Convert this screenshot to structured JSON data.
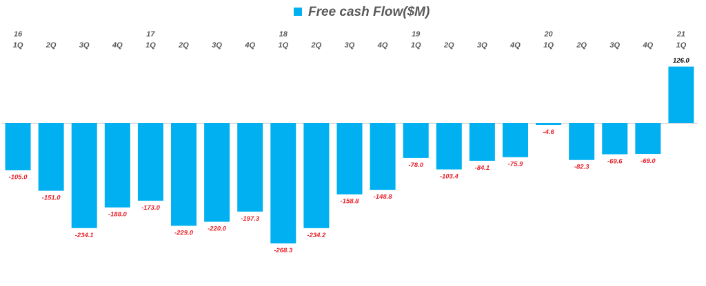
{
  "chart_data": {
    "type": "bar",
    "title": "",
    "legend": [
      {
        "label": "Free cash Flow($M)",
        "color": "#00B0F0"
      }
    ],
    "legend_position": "top-center",
    "xlabel": "",
    "ylabel": "",
    "categories": [
      {
        "year": "16",
        "quarter": "1Q"
      },
      {
        "year": "",
        "quarter": "2Q"
      },
      {
        "year": "",
        "quarter": "3Q"
      },
      {
        "year": "",
        "quarter": "4Q"
      },
      {
        "year": "17",
        "quarter": "1Q"
      },
      {
        "year": "",
        "quarter": "2Q"
      },
      {
        "year": "",
        "quarter": "3Q"
      },
      {
        "year": "",
        "quarter": "4Q"
      },
      {
        "year": "18",
        "quarter": "1Q"
      },
      {
        "year": "",
        "quarter": "2Q"
      },
      {
        "year": "",
        "quarter": "3Q"
      },
      {
        "year": "",
        "quarter": "4Q"
      },
      {
        "year": "19",
        "quarter": "1Q"
      },
      {
        "year": "",
        "quarter": "2Q"
      },
      {
        "year": "",
        "quarter": "3Q"
      },
      {
        "year": "",
        "quarter": "4Q"
      },
      {
        "year": "20",
        "quarter": "1Q"
      },
      {
        "year": "",
        "quarter": "2Q"
      },
      {
        "year": "",
        "quarter": "3Q"
      },
      {
        "year": "",
        "quarter": "4Q"
      },
      {
        "year": "21",
        "quarter": "1Q"
      }
    ],
    "values": [
      -105.0,
      -151.0,
      -234.1,
      -188.0,
      -173.0,
      -229.0,
      -220.0,
      -197.3,
      -268.3,
      -234.2,
      -158.8,
      -148.8,
      -78.0,
      -103.4,
      -84.1,
      -75.9,
      -4.6,
      -82.3,
      -69.6,
      -69.0,
      126.0
    ],
    "labels": [
      "-105.0",
      "-151.0",
      "-234.1",
      "-188.0",
      "-173.0",
      "-229.0",
      "-220.0",
      "-197.3",
      "-268.3",
      "-234.2",
      "-158.8",
      "-148.8",
      "-78.0",
      "-103.4",
      "-84.1",
      "-75.9",
      "-4.6",
      "-82.3",
      "-69.6",
      "-69.0",
      "126.0"
    ],
    "ylim": [
      -300,
      150
    ],
    "grid": false,
    "colors": {
      "bar": "#00B0F0",
      "negative_label": "#E8242B",
      "positive_label": "#000000",
      "tick": "#595959",
      "axis": "#D9D9D9"
    }
  }
}
